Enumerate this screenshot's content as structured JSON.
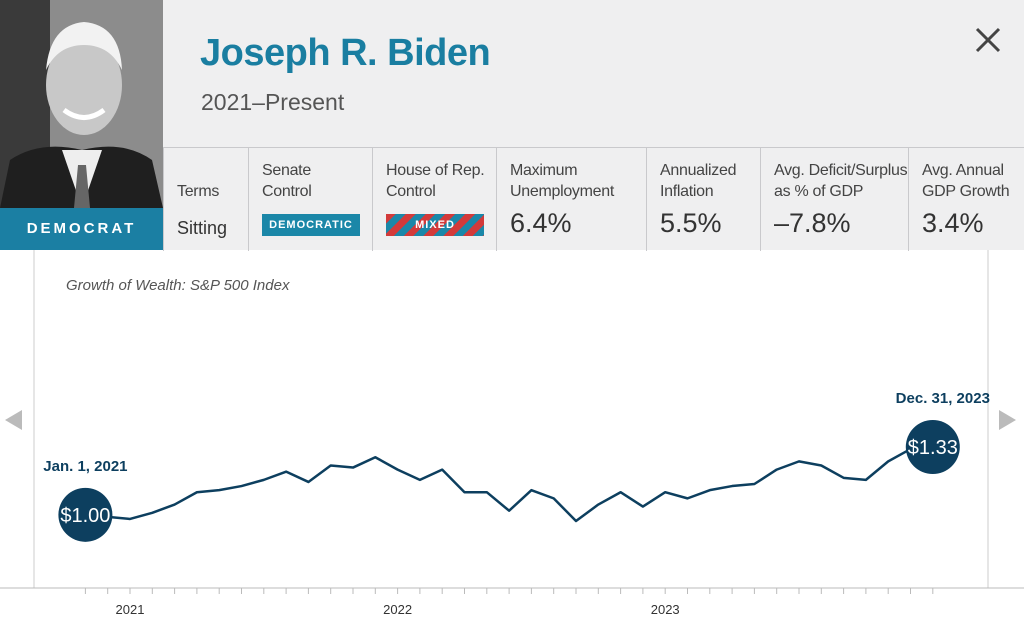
{
  "header": {
    "name": "Joseph R. Biden",
    "term": "2021–Present",
    "party": "DEMOCRAT"
  },
  "stats": [
    {
      "label": [
        "Terms"
      ],
      "value": "Sitting"
    },
    {
      "label": [
        "Senate",
        "Control"
      ],
      "badge": "DEMOCRATIC",
      "badge_colors": [
        "#1b87a8"
      ]
    },
    {
      "label": [
        "House of Rep.",
        "Control"
      ],
      "badge": "MIXED",
      "badge_colors": [
        "#d23a3a",
        "#1b87a8"
      ]
    },
    {
      "label": [
        "Maximum",
        "Unemployment"
      ],
      "value": "6.4%"
    },
    {
      "label": [
        "Annualized",
        "Inflation"
      ],
      "value": "5.5%"
    },
    {
      "label": [
        "Avg. Deficit/Surplus",
        "as % of GDP"
      ],
      "value": "–7.8%"
    },
    {
      "label": [
        "Avg. Annual",
        "GDP Growth"
      ],
      "value": "3.4%"
    }
  ],
  "chart_data": {
    "type": "line",
    "title": "Growth of Wealth: S&P 500 Index",
    "color": "#0d3f5f",
    "categories": [
      null,
      null,
      "2021",
      null,
      null,
      null,
      null,
      null,
      null,
      null,
      null,
      null,
      null,
      null,
      "2022",
      null,
      null,
      null,
      null,
      null,
      null,
      null,
      null,
      null,
      null,
      null,
      "2023",
      null,
      null,
      null,
      null,
      null,
      null,
      null,
      null,
      null,
      null,
      null,
      null
    ],
    "values": [
      1.0,
      0.99,
      0.98,
      1.01,
      1.05,
      1.11,
      1.12,
      1.14,
      1.17,
      1.21,
      1.16,
      1.24,
      1.23,
      1.28,
      1.22,
      1.17,
      1.22,
      1.11,
      1.11,
      1.02,
      1.12,
      1.08,
      0.97,
      1.05,
      1.11,
      1.04,
      1.11,
      1.08,
      1.12,
      1.14,
      1.15,
      1.22,
      1.26,
      1.24,
      1.18,
      1.17,
      1.26,
      1.32,
      1.33
    ],
    "value_labels": [
      "$1.00",
      null,
      null,
      null,
      null,
      null,
      null,
      null,
      null,
      null,
      null,
      null,
      null,
      null,
      null,
      null,
      null,
      null,
      null,
      null,
      null,
      null,
      null,
      null,
      null,
      null,
      null,
      null,
      null,
      null,
      null,
      null,
      null,
      null,
      null,
      null,
      null,
      null,
      "$1.33"
    ],
    "date_labels": [
      "Jan. 1, 2021",
      null,
      null,
      null,
      null,
      null,
      null,
      null,
      null,
      null,
      null,
      null,
      null,
      null,
      null,
      null,
      null,
      null,
      null,
      null,
      null,
      null,
      null,
      null,
      null,
      null,
      null,
      null,
      null,
      null,
      null,
      null,
      null,
      null,
      null,
      null,
      null,
      null,
      "Dec. 31, 2023"
    ]
  }
}
